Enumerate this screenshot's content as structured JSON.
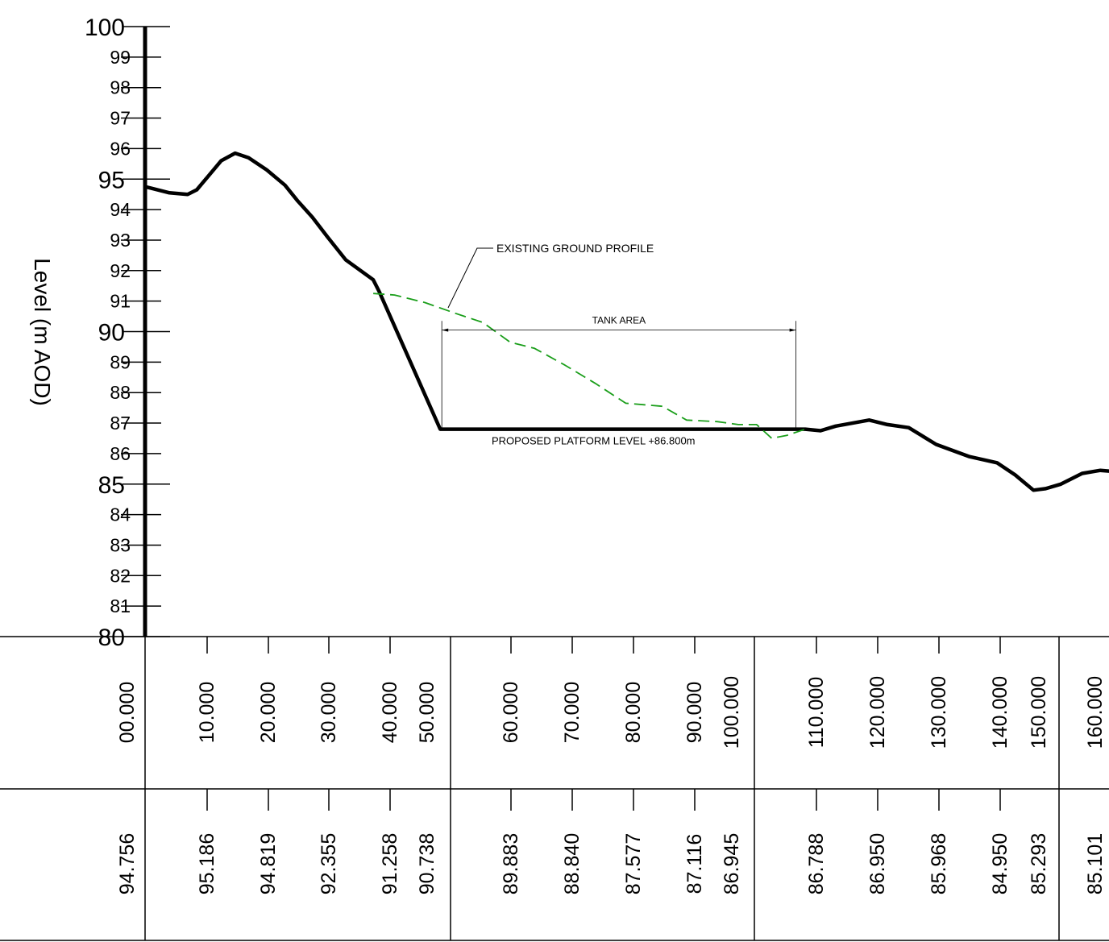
{
  "chart_data": {
    "type": "line",
    "ylabel": "Level (m AOD)",
    "ylim": [
      80,
      100
    ],
    "yticks": [
      80,
      81,
      82,
      83,
      84,
      85,
      86,
      87,
      88,
      89,
      90,
      91,
      92,
      93,
      94,
      95,
      96,
      97,
      98,
      99,
      100
    ],
    "yticks_major": [
      80,
      85,
      90,
      95,
      100
    ],
    "series": [
      {
        "style": "solid-black",
        "x": [
          0.0,
          1.0,
          4.0,
          7.0,
          8.5,
          12.5,
          14.8,
          17.0,
          20.0,
          23.0,
          25.0,
          27.5,
          30.0,
          33.0,
          37.5,
          38.5,
          48.5,
          68.0,
          82.5,
          107.5,
          108.5,
          111.0,
          113.5,
          119.0,
          122.0,
          125.5,
          130.0,
          135.5,
          140.0,
          143.0,
          146.0,
          148.0,
          150.5,
          154.0,
          157.0,
          160.0
        ],
        "y": [
          94.75,
          94.7,
          94.55,
          94.5,
          94.65,
          95.6,
          95.85,
          95.7,
          95.3,
          94.8,
          94.3,
          93.75,
          93.1,
          92.35,
          91.7,
          91.3,
          86.8,
          86.8,
          86.8,
          86.8,
          86.8,
          86.75,
          86.9,
          87.1,
          86.95,
          86.85,
          86.3,
          85.9,
          85.7,
          85.3,
          84.8,
          84.85,
          85.0,
          85.35,
          85.45,
          85.4
        ]
      },
      {
        "style": "dashed-green",
        "x": [
          37.5,
          41.0,
          46.0,
          51.0,
          55.5,
          60.0,
          64.0,
          69.0,
          74.0,
          79.0,
          85.0,
          89.0,
          94.0,
          97.5,
          100.5,
          103.0,
          105.5,
          108.5
        ],
        "y": [
          91.25,
          91.2,
          90.95,
          90.6,
          90.3,
          89.65,
          89.45,
          88.9,
          88.3,
          87.65,
          87.55,
          87.1,
          87.05,
          86.95,
          86.95,
          86.5,
          86.6,
          86.8
        ]
      }
    ],
    "annotations": {
      "existing_ground": "EXISTING GROUND PROFILE",
      "tank_area": "TANK AREA",
      "platform": "PROPOSED PLATFORM LEVEL +86.800m",
      "tank_range": [
        48.5,
        107.5
      ],
      "platform_level": 86.8
    },
    "table": {
      "chainage": [
        "00.000",
        "10.000",
        "20.000",
        "30.000",
        "40.000",
        "50.000",
        "60.000",
        "70.000",
        "80.000",
        "90.000",
        "100.000",
        "110.000",
        "120.000",
        "130.000",
        "140.000",
        "150.000",
        "160.000"
      ],
      "level": [
        "94.756",
        "95.186",
        "94.819",
        "92.355",
        "91.258",
        "90.738",
        "89.883",
        "88.840",
        "87.577",
        "87.116",
        "86.945",
        "86.788",
        "86.950",
        "85.968",
        "84.950",
        "85.293",
        "85.101"
      ]
    }
  },
  "colors": {
    "profile": "#000000",
    "existing_ground": "#1a9e1a"
  }
}
